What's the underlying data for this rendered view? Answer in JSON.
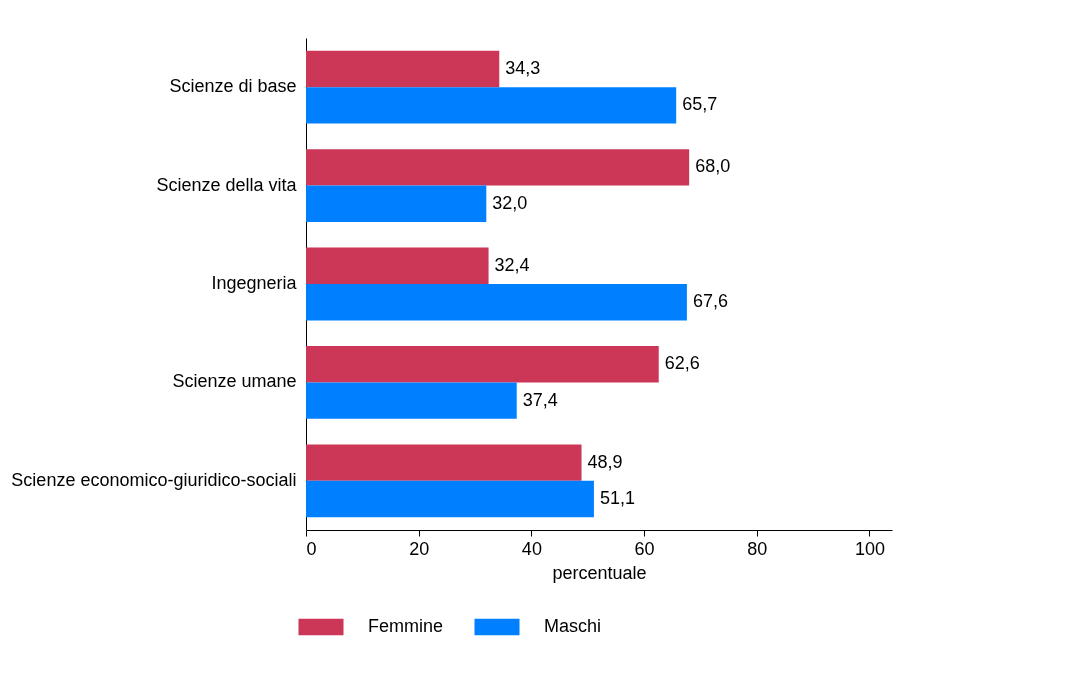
{
  "chart_data": {
    "type": "bar",
    "orientation": "horizontal",
    "categories": [
      "Scienze di base",
      "Scienze della vita",
      "Ingegneria",
      "Scienze umane",
      "Scienze economico-giuridico-sociali"
    ],
    "series": [
      {
        "name": "Femmine",
        "color": "#cc3757",
        "values": [
          34.3,
          68.0,
          32.4,
          62.6,
          48.9
        ],
        "value_labels": [
          "34,3",
          "68,0",
          "32,4",
          "62,6",
          "48,9"
        ]
      },
      {
        "name": "Maschi",
        "color": "#0080ff",
        "values": [
          65.7,
          32.0,
          67.6,
          37.4,
          51.1
        ],
        "value_labels": [
          "65,7",
          "32,0",
          "67,6",
          "37,4",
          "51,1"
        ]
      }
    ],
    "xlabel": "percentuale",
    "xlim": [
      0,
      104
    ],
    "xticks": [
      0,
      20,
      40,
      60,
      80,
      100
    ],
    "grid": false,
    "legend": "bottom"
  }
}
